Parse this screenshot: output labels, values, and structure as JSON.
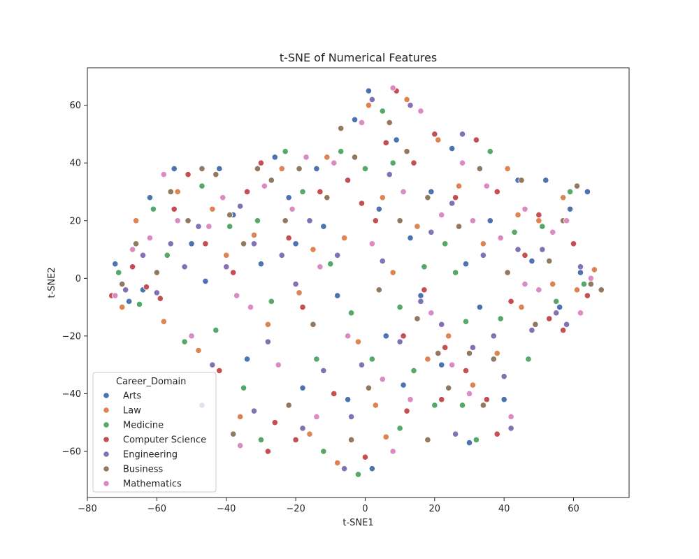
{
  "chart_data": {
    "type": "scatter",
    "title": "t-SNE of Numerical Features",
    "xlabel": "t-SNE1",
    "ylabel": "t-SNE2",
    "xlim": [
      -80,
      76
    ],
    "ylim": [
      -76,
      73
    ],
    "xticks": [
      -80,
      -60,
      -40,
      -20,
      0,
      20,
      40,
      60
    ],
    "yticks": [
      -60,
      -40,
      -20,
      0,
      20,
      40,
      60
    ],
    "grid": false,
    "legend": {
      "title": "Career_Domain",
      "placement": "lower-left"
    },
    "series": [
      {
        "name": "Arts",
        "color": "#4c72b0",
        "points": [
          [
            -72,
            5
          ],
          [
            -68,
            -8
          ],
          [
            -62,
            28
          ],
          [
            -55,
            38
          ],
          [
            -50,
            12
          ],
          [
            -46,
            -1
          ],
          [
            -42,
            38
          ],
          [
            -38,
            22
          ],
          [
            -34,
            -28
          ],
          [
            -30,
            5
          ],
          [
            -26,
            42
          ],
          [
            -22,
            28
          ],
          [
            -18,
            -38
          ],
          [
            -14,
            38
          ],
          [
            -12,
            18
          ],
          [
            -8,
            -6
          ],
          [
            -5,
            -42
          ],
          [
            -3,
            55
          ],
          [
            1,
            65
          ],
          [
            4,
            24
          ],
          [
            6,
            -20
          ],
          [
            9,
            48
          ],
          [
            11,
            -37
          ],
          [
            13,
            14
          ],
          [
            16,
            -6
          ],
          [
            19,
            30
          ],
          [
            22,
            -30
          ],
          [
            25,
            45
          ],
          [
            29,
            5
          ],
          [
            33,
            -10
          ],
          [
            36,
            20
          ],
          [
            40,
            -42
          ],
          [
            44,
            34
          ],
          [
            48,
            6
          ],
          [
            52,
            34
          ],
          [
            56,
            -10
          ],
          [
            59,
            24
          ],
          [
            62,
            2
          ],
          [
            64,
            30
          ],
          [
            -64,
            -4
          ],
          [
            -47,
            -44
          ],
          [
            -20,
            12
          ],
          [
            2,
            -66
          ],
          [
            30,
            -57
          ]
        ]
      },
      {
        "name": "Law",
        "color": "#dd8452",
        "points": [
          [
            -70,
            -10
          ],
          [
            -66,
            20
          ],
          [
            -58,
            -15
          ],
          [
            -54,
            30
          ],
          [
            -48,
            -25
          ],
          [
            -44,
            24
          ],
          [
            -36,
            -48
          ],
          [
            -32,
            15
          ],
          [
            -28,
            -16
          ],
          [
            -24,
            38
          ],
          [
            -19,
            -5
          ],
          [
            -15,
            10
          ],
          [
            -11,
            42
          ],
          [
            -6,
            14
          ],
          [
            -2,
            -22
          ],
          [
            1,
            60
          ],
          [
            3,
            -44
          ],
          [
            5,
            28
          ],
          [
            8,
            2
          ],
          [
            12,
            62
          ],
          [
            15,
            18
          ],
          [
            18,
            -28
          ],
          [
            21,
            48
          ],
          [
            24,
            -20
          ],
          [
            27,
            32
          ],
          [
            31,
            -37
          ],
          [
            34,
            12
          ],
          [
            38,
            -26
          ],
          [
            41,
            38
          ],
          [
            45,
            -10
          ],
          [
            50,
            20
          ],
          [
            54,
            -2
          ],
          [
            57,
            28
          ],
          [
            61,
            -4
          ],
          [
            66,
            3
          ],
          [
            -40,
            8
          ],
          [
            -16,
            -54
          ],
          [
            -8,
            -64
          ],
          [
            6,
            -55
          ],
          [
            44,
            22
          ]
        ]
      },
      {
        "name": "Medicine",
        "color": "#55a868",
        "points": [
          [
            -71,
            2
          ],
          [
            -65,
            -9
          ],
          [
            -61,
            24
          ],
          [
            -57,
            8
          ],
          [
            -52,
            -22
          ],
          [
            -47,
            32
          ],
          [
            -43,
            -18
          ],
          [
            -39,
            18
          ],
          [
            -35,
            -38
          ],
          [
            -31,
            20
          ],
          [
            -27,
            -8
          ],
          [
            -23,
            44
          ],
          [
            -18,
            30
          ],
          [
            -14,
            -28
          ],
          [
            -10,
            5
          ],
          [
            -7,
            44
          ],
          [
            -4,
            -12
          ],
          [
            0,
            38
          ],
          [
            2,
            -28
          ],
          [
            5,
            58
          ],
          [
            8,
            40
          ],
          [
            10,
            -10
          ],
          [
            14,
            -32
          ],
          [
            17,
            4
          ],
          [
            20,
            -44
          ],
          [
            23,
            12
          ],
          [
            26,
            2
          ],
          [
            29,
            -15
          ],
          [
            32,
            -56
          ],
          [
            36,
            44
          ],
          [
            39,
            -14
          ],
          [
            43,
            16
          ],
          [
            47,
            -28
          ],
          [
            51,
            18
          ],
          [
            55,
            -8
          ],
          [
            59,
            30
          ],
          [
            63,
            -2
          ],
          [
            -30,
            -56
          ],
          [
            -12,
            -60
          ],
          [
            -2,
            -68
          ],
          [
            10,
            -52
          ],
          [
            28,
            -44
          ]
        ]
      },
      {
        "name": "Computer Science",
        "color": "#c44e52",
        "points": [
          [
            -73,
            -6
          ],
          [
            -67,
            4
          ],
          [
            -63,
            -3
          ],
          [
            -59,
            -7
          ],
          [
            -55,
            24
          ],
          [
            -51,
            36
          ],
          [
            -46,
            12
          ],
          [
            -42,
            -32
          ],
          [
            -38,
            2
          ],
          [
            -34,
            30
          ],
          [
            -30,
            40
          ],
          [
            -26,
            -50
          ],
          [
            -22,
            14
          ],
          [
            -18,
            -10
          ],
          [
            -13,
            30
          ],
          [
            -9,
            -40
          ],
          [
            -5,
            34
          ],
          [
            -1,
            26
          ],
          [
            3,
            20
          ],
          [
            6,
            47
          ],
          [
            9,
            65
          ],
          [
            11,
            -20
          ],
          [
            14,
            40
          ],
          [
            17,
            -4
          ],
          [
            20,
            50
          ],
          [
            23,
            -24
          ],
          [
            26,
            28
          ],
          [
            29,
            -32
          ],
          [
            32,
            48
          ],
          [
            35,
            -42
          ],
          [
            38,
            30
          ],
          [
            42,
            -8
          ],
          [
            46,
            8
          ],
          [
            50,
            22
          ],
          [
            53,
            -14
          ],
          [
            57,
            -18
          ],
          [
            60,
            12
          ],
          [
            64,
            -6
          ],
          [
            -28,
            -60
          ],
          [
            -20,
            -56
          ],
          [
            0,
            -62
          ],
          [
            12,
            -46
          ],
          [
            22,
            -42
          ],
          [
            38,
            -54
          ]
        ]
      },
      {
        "name": "Engineering",
        "color": "#8172b3",
        "points": [
          [
            -69,
            -4
          ],
          [
            -64,
            8
          ],
          [
            -60,
            -5
          ],
          [
            -56,
            12
          ],
          [
            -52,
            4
          ],
          [
            -48,
            18
          ],
          [
            -44,
            -30
          ],
          [
            -40,
            4
          ],
          [
            -36,
            25
          ],
          [
            -32,
            12
          ],
          [
            -28,
            -22
          ],
          [
            -24,
            8
          ],
          [
            -20,
            -2
          ],
          [
            -16,
            20
          ],
          [
            -12,
            -32
          ],
          [
            -8,
            8
          ],
          [
            -4,
            -48
          ],
          [
            -1,
            -30
          ],
          [
            2,
            62
          ],
          [
            5,
            6
          ],
          [
            7,
            36
          ],
          [
            10,
            -22
          ],
          [
            13,
            60
          ],
          [
            16,
            -8
          ],
          [
            19,
            16
          ],
          [
            22,
            -16
          ],
          [
            25,
            26
          ],
          [
            28,
            50
          ],
          [
            31,
            -24
          ],
          [
            34,
            8
          ],
          [
            37,
            -20
          ],
          [
            40,
            -34
          ],
          [
            44,
            10
          ],
          [
            48,
            -18
          ],
          [
            51,
            10
          ],
          [
            55,
            -12
          ],
          [
            58,
            -16
          ],
          [
            62,
            4
          ],
          [
            -32,
            -46
          ],
          [
            -18,
            -52
          ],
          [
            -6,
            -66
          ],
          [
            26,
            -54
          ],
          [
            42,
            -52
          ]
        ]
      },
      {
        "name": "Business",
        "color": "#937860",
        "points": [
          [
            -70,
            -2
          ],
          [
            -66,
            12
          ],
          [
            -60,
            2
          ],
          [
            -56,
            30
          ],
          [
            -51,
            20
          ],
          [
            -47,
            38
          ],
          [
            -43,
            36
          ],
          [
            -39,
            22
          ],
          [
            -35,
            12
          ],
          [
            -31,
            38
          ],
          [
            -27,
            34
          ],
          [
            -23,
            20
          ],
          [
            -19,
            38
          ],
          [
            -15,
            -16
          ],
          [
            -11,
            28
          ],
          [
            -7,
            52
          ],
          [
            -3,
            42
          ],
          [
            1,
            -38
          ],
          [
            4,
            -4
          ],
          [
            7,
            54
          ],
          [
            10,
            20
          ],
          [
            12,
            44
          ],
          [
            15,
            -14
          ],
          [
            18,
            28
          ],
          [
            21,
            -26
          ],
          [
            24,
            -38
          ],
          [
            27,
            18
          ],
          [
            30,
            -26
          ],
          [
            33,
            38
          ],
          [
            37,
            -28
          ],
          [
            41,
            2
          ],
          [
            45,
            34
          ],
          [
            49,
            -16
          ],
          [
            53,
            6
          ],
          [
            57,
            20
          ],
          [
            61,
            32
          ],
          [
            65,
            -2
          ],
          [
            68,
            -4
          ],
          [
            -38,
            -54
          ],
          [
            -22,
            -44
          ],
          [
            -4,
            -56
          ],
          [
            18,
            -56
          ],
          [
            34,
            -44
          ]
        ]
      },
      {
        "name": "Mathematics",
        "color": "#da8bc3",
        "points": [
          [
            -72,
            -6
          ],
          [
            -67,
            10
          ],
          [
            -62,
            14
          ],
          [
            -58,
            36
          ],
          [
            -54,
            20
          ],
          [
            -50,
            -20
          ],
          [
            -45,
            18
          ],
          [
            -41,
            28
          ],
          [
            -37,
            -6
          ],
          [
            -33,
            -10
          ],
          [
            -29,
            32
          ],
          [
            -25,
            -30
          ],
          [
            -21,
            24
          ],
          [
            -17,
            42
          ],
          [
            -13,
            4
          ],
          [
            -9,
            40
          ],
          [
            -5,
            -20
          ],
          [
            -1,
            54
          ],
          [
            2,
            12
          ],
          [
            5,
            -35
          ],
          [
            8,
            66
          ],
          [
            11,
            30
          ],
          [
            13,
            -42
          ],
          [
            16,
            58
          ],
          [
            19,
            -12
          ],
          [
            22,
            22
          ],
          [
            25,
            -30
          ],
          [
            28,
            40
          ],
          [
            31,
            20
          ],
          [
            35,
            32
          ],
          [
            39,
            14
          ],
          [
            42,
            -48
          ],
          [
            46,
            24
          ],
          [
            50,
            -4
          ],
          [
            54,
            16
          ],
          [
            58,
            20
          ],
          [
            62,
            -12
          ],
          [
            65,
            0
          ],
          [
            -36,
            -58
          ],
          [
            -14,
            -48
          ],
          [
            8,
            -60
          ],
          [
            30,
            -40
          ],
          [
            46,
            -2
          ]
        ]
      }
    ]
  }
}
